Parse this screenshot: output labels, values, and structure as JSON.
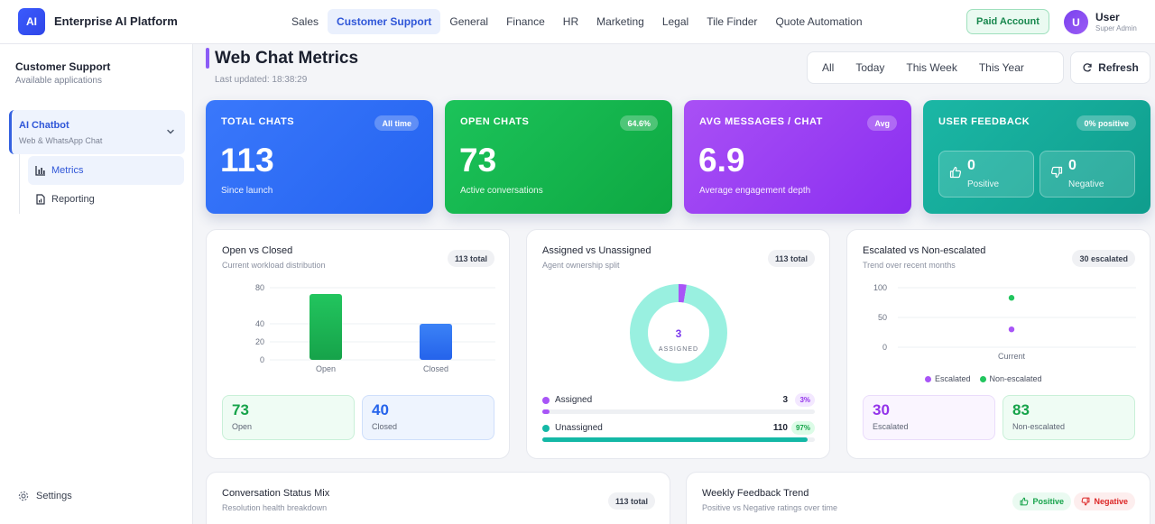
{
  "topbar": {
    "logo": "AI",
    "brand": "Enterprise AI Platform",
    "nav": [
      "Sales",
      "Customer Support",
      "General",
      "Finance",
      "HR",
      "Marketing",
      "Legal",
      "Tile Finder",
      "Quote Automation"
    ],
    "nav_active": 1,
    "paid_label": "Paid Account",
    "user_initial": "U",
    "user_name": "User",
    "user_role": "Super Admin"
  },
  "sidebar": {
    "title": "Customer Support",
    "subtitle": "Available applications",
    "app_name": "AI Chatbot",
    "app_sub": "Web & WhatsApp Chat",
    "items": [
      {
        "label": "Metrics",
        "icon": "bar-chart-icon",
        "active": true
      },
      {
        "label": "Reporting",
        "icon": "report-icon",
        "active": false
      }
    ],
    "settings_label": "Settings"
  },
  "header": {
    "title": "Web Chat Metrics",
    "updated": "Last updated: 18:38:29",
    "ranges": [
      "All",
      "Today",
      "This Week",
      "This Year"
    ],
    "refresh_label": "Refresh"
  },
  "stats": {
    "total": {
      "label": "TOTAL CHATS",
      "badge": "All time",
      "value": "113",
      "sub": "Since launch"
    },
    "open": {
      "label": "OPEN CHATS",
      "badge": "64.6%",
      "value": "73",
      "sub": "Active conversations"
    },
    "avg": {
      "label": "AVG MESSAGES / CHAT",
      "badge": "Avg",
      "value": "6.9",
      "sub": "Average engagement depth"
    },
    "feedback": {
      "label": "USER FEEDBACK",
      "badge": "0% positive",
      "positive_value": "0",
      "positive_label": "Positive",
      "negative_value": "0",
      "negative_label": "Negative"
    }
  },
  "colors": {
    "blue": "#2f6bf5",
    "green": "#12b24c",
    "purple": "#9b3cf2",
    "teal": "#16a898",
    "accent": "#2f56d8"
  },
  "open_closed": {
    "title": "Open vs Closed",
    "sub": "Current workload distribution",
    "badge": "113 total",
    "open_value": "73",
    "open_label": "Open",
    "closed_value": "40",
    "closed_label": "Closed"
  },
  "assigned": {
    "title": "Assigned vs Unassigned",
    "sub": "Agent ownership split",
    "badge": "113 total",
    "center_value": "3",
    "center_label": "ASSIGNED",
    "rows": [
      {
        "name": "Assigned",
        "count": "3",
        "pct": "3%",
        "fraction": 0.027
      },
      {
        "name": "Unassigned",
        "count": "110",
        "pct": "97%",
        "fraction": 0.973
      }
    ]
  },
  "escalated": {
    "title": "Escalated vs Non-escalated",
    "sub": "Trend over recent months",
    "badge": "30 escalated",
    "legend_escalated": "Escalated",
    "legend_non": "Non-escalated",
    "escalated_value": "30",
    "escalated_label": "Escalated",
    "non_value": "83",
    "non_label": "Non-escalated"
  },
  "status_mix": {
    "title": "Conversation Status Mix",
    "sub": "Resolution health breakdown",
    "badge": "113 total"
  },
  "weekly": {
    "title": "Weekly Feedback Trend",
    "sub": "Positive vs Negative ratings over time",
    "positive_tag": "Positive",
    "negative_tag": "Negative"
  },
  "chart_data": [
    {
      "type": "bar",
      "categories": [
        "Open",
        "Closed"
      ],
      "values": [
        73,
        40
      ],
      "yticks": [
        "0",
        "20",
        "40",
        "80"
      ],
      "ylim": [
        0,
        80
      ]
    },
    {
      "type": "pie",
      "categories": [
        "Assigned",
        "Unassigned"
      ],
      "values": [
        3,
        110
      ]
    },
    {
      "type": "scatter",
      "x": [
        "Current"
      ],
      "series": [
        {
          "name": "Escalated",
          "values": [
            30
          ]
        },
        {
          "name": "Non-escalated",
          "values": [
            83
          ]
        }
      ],
      "yticks": [
        "0",
        "50",
        "100"
      ],
      "ylim": [
        0,
        100
      ]
    }
  ]
}
